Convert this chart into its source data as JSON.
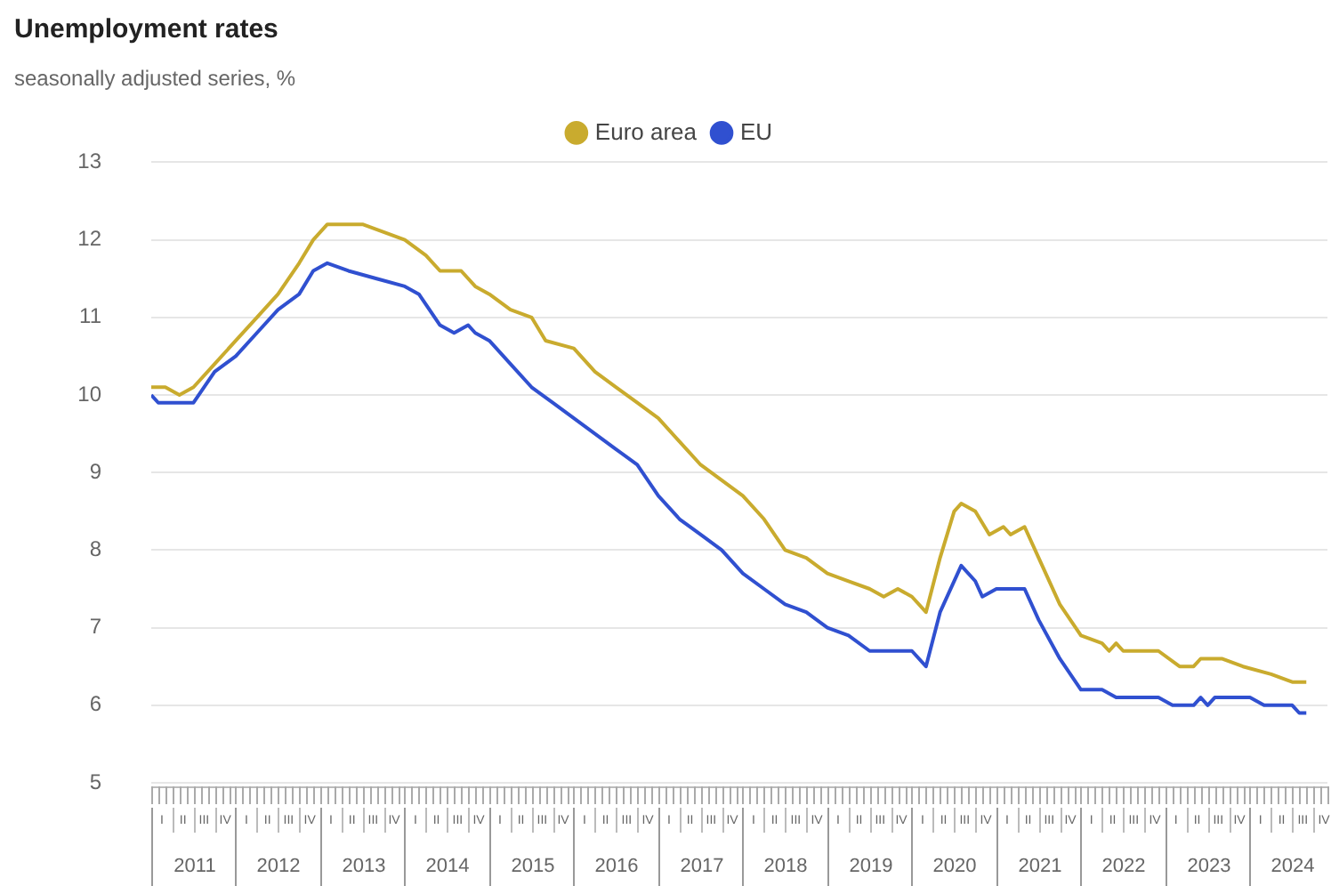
{
  "chart_data": {
    "type": "line",
    "title": "Unemployment rates",
    "subtitle": "seasonally adjusted series, %",
    "ylim": [
      5,
      13
    ],
    "yticks": [
      5,
      6,
      7,
      8,
      9,
      10,
      11,
      12,
      13
    ],
    "grid": "y",
    "legend": "top",
    "xlim": [
      "2011-01",
      "2024-12"
    ],
    "annotations": [
      "I",
      "II",
      "III",
      "IV",
      "I",
      "II",
      "III",
      "IV",
      "I",
      "II",
      "III",
      "IV",
      "I",
      "II",
      "III",
      "IV",
      "I",
      "II",
      "III",
      "IV",
      "I",
      "II",
      "III",
      "IV",
      "I",
      "II",
      "III",
      "IV",
      "I",
      "II",
      "III",
      "IV",
      "I",
      "II",
      "III",
      "IV",
      "I",
      "II",
      "III",
      "IV",
      "I",
      "II",
      "III",
      "IV",
      "I",
      "II",
      "III",
      "IV",
      "I",
      "II",
      "III",
      "IV",
      "I",
      "II",
      "III",
      "IV"
    ],
    "xticks": [
      {
        "value": "2011-01",
        "label": null
      },
      {
        "value": "2011-02",
        "label": null
      },
      {
        "value": "2011-03",
        "label": null
      },
      {
        "value": "2011-04",
        "label": null
      },
      {
        "value": "2011-05",
        "label": null
      },
      {
        "value": "2011-06",
        "label": null
      },
      {
        "value": "2011-07",
        "label": "2011"
      },
      {
        "value": "2011-08",
        "label": null
      },
      {
        "value": "2011-09",
        "label": null
      },
      {
        "value": "2011-10",
        "label": null
      },
      {
        "value": "2011-11",
        "label": null
      },
      {
        "value": "2011-12",
        "label": null
      },
      {
        "value": "2012-01",
        "label": null
      },
      {
        "value": "2012-02",
        "label": null
      },
      {
        "value": "2012-03",
        "label": null
      },
      {
        "value": "2012-04",
        "label": null
      },
      {
        "value": "2012-05",
        "label": null
      },
      {
        "value": "2012-06",
        "label": null
      },
      {
        "value": "2012-07",
        "label": "2012"
      },
      {
        "value": "2012-08",
        "label": null
      },
      {
        "value": "2012-09",
        "label": null
      },
      {
        "value": "2012-10",
        "label": null
      },
      {
        "value": "2012-11",
        "label": null
      },
      {
        "value": "2012-12",
        "label": null
      },
      {
        "value": "2013-01",
        "label": null
      },
      {
        "value": "2013-02",
        "label": null
      },
      {
        "value": "2013-03",
        "label": null
      },
      {
        "value": "2013-04",
        "label": null
      },
      {
        "value": "2013-05",
        "label": null
      },
      {
        "value": "2013-06",
        "label": null
      },
      {
        "value": "2013-07",
        "label": "2013"
      },
      {
        "value": "2013-08",
        "label": null
      },
      {
        "value": "2013-09",
        "label": null
      },
      {
        "value": "2013-10",
        "label": null
      },
      {
        "value": "2013-11",
        "label": null
      },
      {
        "value": "2013-12",
        "label": null
      },
      {
        "value": "2014-01",
        "label": null
      },
      {
        "value": "2014-02",
        "label": null
      },
      {
        "value": "2014-03",
        "label": null
      },
      {
        "value": "2014-04",
        "label": null
      },
      {
        "value": "2014-05",
        "label": null
      },
      {
        "value": "2014-06",
        "label": null
      },
      {
        "value": "2014-07",
        "label": "2014"
      },
      {
        "value": "2014-08",
        "label": null
      },
      {
        "value": "2014-09",
        "label": null
      },
      {
        "value": "2014-10",
        "label": null
      },
      {
        "value": "2014-11",
        "label": null
      },
      {
        "value": "2014-12",
        "label": null
      },
      {
        "value": "2015-01",
        "label": null
      },
      {
        "value": "2015-02",
        "label": null
      },
      {
        "value": "2015-03",
        "label": null
      },
      {
        "value": "2015-04",
        "label": null
      },
      {
        "value": "2015-05",
        "label": null
      },
      {
        "value": "2015-06",
        "label": null
      },
      {
        "value": "2015-07",
        "label": "2015"
      },
      {
        "value": "2015-08",
        "label": null
      },
      {
        "value": "2015-09",
        "label": null
      },
      {
        "value": "2015-10",
        "label": null
      },
      {
        "value": "2015-11",
        "label": null
      },
      {
        "value": "2015-12",
        "label": null
      },
      {
        "value": "2016-01",
        "label": null
      },
      {
        "value": "2016-02",
        "label": null
      },
      {
        "value": "2016-03",
        "label": null
      },
      {
        "value": "2016-04",
        "label": null
      },
      {
        "value": "2016-05",
        "label": null
      },
      {
        "value": "2016-06",
        "label": null
      },
      {
        "value": "2016-07",
        "label": "2016"
      },
      {
        "value": "2016-08",
        "label": null
      },
      {
        "value": "2016-09",
        "label": null
      },
      {
        "value": "2016-10",
        "label": null
      },
      {
        "value": "2016-11",
        "label": null
      },
      {
        "value": "2016-12",
        "label": null
      },
      {
        "value": "2017-01",
        "label": null
      },
      {
        "value": "2017-02",
        "label": null
      },
      {
        "value": "2017-03",
        "label": null
      },
      {
        "value": "2017-04",
        "label": null
      },
      {
        "value": "2017-05",
        "label": null
      },
      {
        "value": "2017-06",
        "label": null
      },
      {
        "value": "2017-07",
        "label": "2017"
      },
      {
        "value": "2017-08",
        "label": null
      },
      {
        "value": "2017-09",
        "label": null
      },
      {
        "value": "2017-10",
        "label": null
      },
      {
        "value": "2017-11",
        "label": null
      },
      {
        "value": "2017-12",
        "label": null
      },
      {
        "value": "2018-01",
        "label": null
      },
      {
        "value": "2018-02",
        "label": null
      },
      {
        "value": "2018-03",
        "label": null
      },
      {
        "value": "2018-04",
        "label": null
      },
      {
        "value": "2018-05",
        "label": null
      },
      {
        "value": "2018-06",
        "label": null
      },
      {
        "value": "2018-07",
        "label": "2018"
      },
      {
        "value": "2018-08",
        "label": null
      },
      {
        "value": "2018-09",
        "label": null
      },
      {
        "value": "2018-10",
        "label": null
      },
      {
        "value": "2018-11",
        "label": null
      },
      {
        "value": "2018-12",
        "label": null
      },
      {
        "value": "2019-01",
        "label": null
      },
      {
        "value": "2019-02",
        "label": null
      },
      {
        "value": "2019-03",
        "label": null
      },
      {
        "value": "2019-04",
        "label": null
      },
      {
        "value": "2019-05",
        "label": null
      },
      {
        "value": "2019-06",
        "label": null
      },
      {
        "value": "2019-07",
        "label": "2019"
      },
      {
        "value": "2019-08",
        "label": null
      },
      {
        "value": "2019-09",
        "label": null
      },
      {
        "value": "2019-10",
        "label": null
      },
      {
        "value": "2019-11",
        "label": null
      },
      {
        "value": "2019-12",
        "label": null
      },
      {
        "value": "2020-01",
        "label": null
      },
      {
        "value": "2020-02",
        "label": null
      },
      {
        "value": "2020-03",
        "label": null
      },
      {
        "value": "2020-04",
        "label": null
      },
      {
        "value": "2020-05",
        "label": null
      },
      {
        "value": "2020-06",
        "label": null
      },
      {
        "value": "2020-07",
        "label": "2020"
      },
      {
        "value": "2020-08",
        "label": null
      },
      {
        "value": "2020-09",
        "label": null
      },
      {
        "value": "2020-10",
        "label": null
      },
      {
        "value": "2020-11",
        "label": null
      },
      {
        "value": "2020-12",
        "label": null
      },
      {
        "value": "2021-01",
        "label": null
      },
      {
        "value": "2021-02",
        "label": null
      },
      {
        "value": "2021-03",
        "label": null
      },
      {
        "value": "2021-04",
        "label": null
      },
      {
        "value": "2021-05",
        "label": null
      },
      {
        "value": "2021-06",
        "label": null
      },
      {
        "value": "2021-07",
        "label": "2021"
      },
      {
        "value": "2021-08",
        "label": null
      },
      {
        "value": "2021-09",
        "label": null
      },
      {
        "value": "2021-10",
        "label": null
      },
      {
        "value": "2021-11",
        "label": null
      },
      {
        "value": "2021-12",
        "label": null
      },
      {
        "value": "2022-01",
        "label": null
      },
      {
        "value": "2022-02",
        "label": null
      },
      {
        "value": "2022-03",
        "label": null
      },
      {
        "value": "2022-04",
        "label": null
      },
      {
        "value": "2022-05",
        "label": null
      },
      {
        "value": "2022-06",
        "label": null
      },
      {
        "value": "2022-07",
        "label": "2022"
      },
      {
        "value": "2022-08",
        "label": null
      },
      {
        "value": "2022-09",
        "label": null
      },
      {
        "value": "2022-10",
        "label": null
      },
      {
        "value": "2022-11",
        "label": null
      },
      {
        "value": "2022-12",
        "label": null
      },
      {
        "value": "2023-01",
        "label": null
      },
      {
        "value": "2023-02",
        "label": null
      },
      {
        "value": "2023-03",
        "label": null
      },
      {
        "value": "2023-04",
        "label": null
      },
      {
        "value": "2023-05",
        "label": null
      },
      {
        "value": "2023-06",
        "label": null
      },
      {
        "value": "2023-07",
        "label": "2023"
      },
      {
        "value": "2023-08",
        "label": null
      },
      {
        "value": "2023-09",
        "label": null
      },
      {
        "value": "2023-10",
        "label": null
      },
      {
        "value": "2023-11",
        "label": null
      },
      {
        "value": "2023-12",
        "label": null
      },
      {
        "value": "2024-01",
        "label": null
      },
      {
        "value": "2024-02",
        "label": null
      },
      {
        "value": "2024-03",
        "label": null
      },
      {
        "value": "2024-04",
        "label": null
      },
      {
        "value": "2024-05",
        "label": null
      },
      {
        "value": "2024-06",
        "label": null
      },
      {
        "value": "2024-07",
        "label": "2024"
      },
      {
        "value": "2024-08",
        "label": null
      },
      {
        "value": "2024-09",
        "label": null
      },
      {
        "value": "2024-10",
        "label": null
      },
      {
        "value": "2024-11",
        "label": null
      },
      {
        "value": "2024-12",
        "label": null
      }
    ],
    "series": [
      {
        "name": "Euro area",
        "color": "#c9ab2e",
        "x": [
          "2011-01",
          "2011-03",
          "2011-05",
          "2011-07",
          "2011-10",
          "2012-01",
          "2012-04",
          "2012-07",
          "2012-10",
          "2012-12",
          "2013-02",
          "2013-07",
          "2013-10",
          "2014-01",
          "2014-04",
          "2014-06",
          "2014-09",
          "2014-11",
          "2015-01",
          "2015-04",
          "2015-07",
          "2015-09",
          "2016-01",
          "2016-04",
          "2016-07",
          "2016-10",
          "2017-01",
          "2017-04",
          "2017-07",
          "2017-10",
          "2018-01",
          "2018-04",
          "2018-07",
          "2018-10",
          "2019-01",
          "2019-04",
          "2019-07",
          "2019-09",
          "2019-11",
          "2020-01",
          "2020-03",
          "2020-05",
          "2020-07",
          "2020-08",
          "2020-10",
          "2020-12",
          "2021-02",
          "2021-03",
          "2021-05",
          "2021-07",
          "2021-10",
          "2022-01",
          "2022-04",
          "2022-05",
          "2022-06",
          "2022-07",
          "2022-12",
          "2023-03",
          "2023-05",
          "2023-06",
          "2023-09",
          "2023-12",
          "2024-04",
          "2024-07",
          "2024-09"
        ],
        "values": [
          10.1,
          10.1,
          10.0,
          10.1,
          10.4,
          10.7,
          11.0,
          11.3,
          11.7,
          12.0,
          12.2,
          12.2,
          12.1,
          12.0,
          11.8,
          11.6,
          11.6,
          11.4,
          11.3,
          11.1,
          11.0,
          10.7,
          10.6,
          10.3,
          10.1,
          9.9,
          9.7,
          9.4,
          9.1,
          8.9,
          8.7,
          8.4,
          8.0,
          7.9,
          7.7,
          7.6,
          7.5,
          7.4,
          7.5,
          7.4,
          7.2,
          7.9,
          8.5,
          8.6,
          8.5,
          8.2,
          8.3,
          8.2,
          8.3,
          7.9,
          7.3,
          6.9,
          6.8,
          6.7,
          6.8,
          6.7,
          6.7,
          6.5,
          6.5,
          6.6,
          6.6,
          6.5,
          6.4,
          6.3,
          6.3
        ]
      },
      {
        "name": "EU",
        "color": "#3050d0",
        "x": [
          "2011-01",
          "2011-02",
          "2011-07",
          "2011-10",
          "2012-01",
          "2012-04",
          "2012-07",
          "2012-10",
          "2012-12",
          "2013-02",
          "2013-05",
          "2013-09",
          "2014-01",
          "2014-03",
          "2014-06",
          "2014-08",
          "2014-10",
          "2014-11",
          "2015-01",
          "2015-04",
          "2015-07",
          "2015-10",
          "2016-01",
          "2016-07",
          "2016-10",
          "2017-01",
          "2017-04",
          "2017-07",
          "2017-10",
          "2018-01",
          "2018-04",
          "2018-07",
          "2018-10",
          "2019-01",
          "2019-04",
          "2019-07",
          "2020-01",
          "2020-03",
          "2020-05",
          "2020-08",
          "2020-10",
          "2020-11",
          "2021-01",
          "2021-05",
          "2021-07",
          "2021-10",
          "2022-01",
          "2022-04",
          "2022-06",
          "2022-12",
          "2023-02",
          "2023-05",
          "2023-06",
          "2023-07",
          "2023-08",
          "2024-01",
          "2024-03",
          "2024-07",
          "2024-08",
          "2024-09"
        ],
        "values": [
          10.0,
          9.9,
          9.9,
          10.3,
          10.5,
          10.8,
          11.1,
          11.3,
          11.6,
          11.7,
          11.6,
          11.5,
          11.4,
          11.3,
          10.9,
          10.8,
          10.9,
          10.8,
          10.7,
          10.4,
          10.1,
          9.9,
          9.7,
          9.3,
          9.1,
          8.7,
          8.4,
          8.2,
          8.0,
          7.7,
          7.5,
          7.3,
          7.2,
          7.0,
          6.9,
          6.7,
          6.7,
          6.5,
          7.2,
          7.8,
          7.6,
          7.4,
          7.5,
          7.5,
          7.1,
          6.6,
          6.2,
          6.2,
          6.1,
          6.1,
          6.0,
          6.0,
          6.1,
          6.0,
          6.1,
          6.1,
          6.0,
          6.0,
          5.9,
          5.9
        ]
      }
    ]
  }
}
